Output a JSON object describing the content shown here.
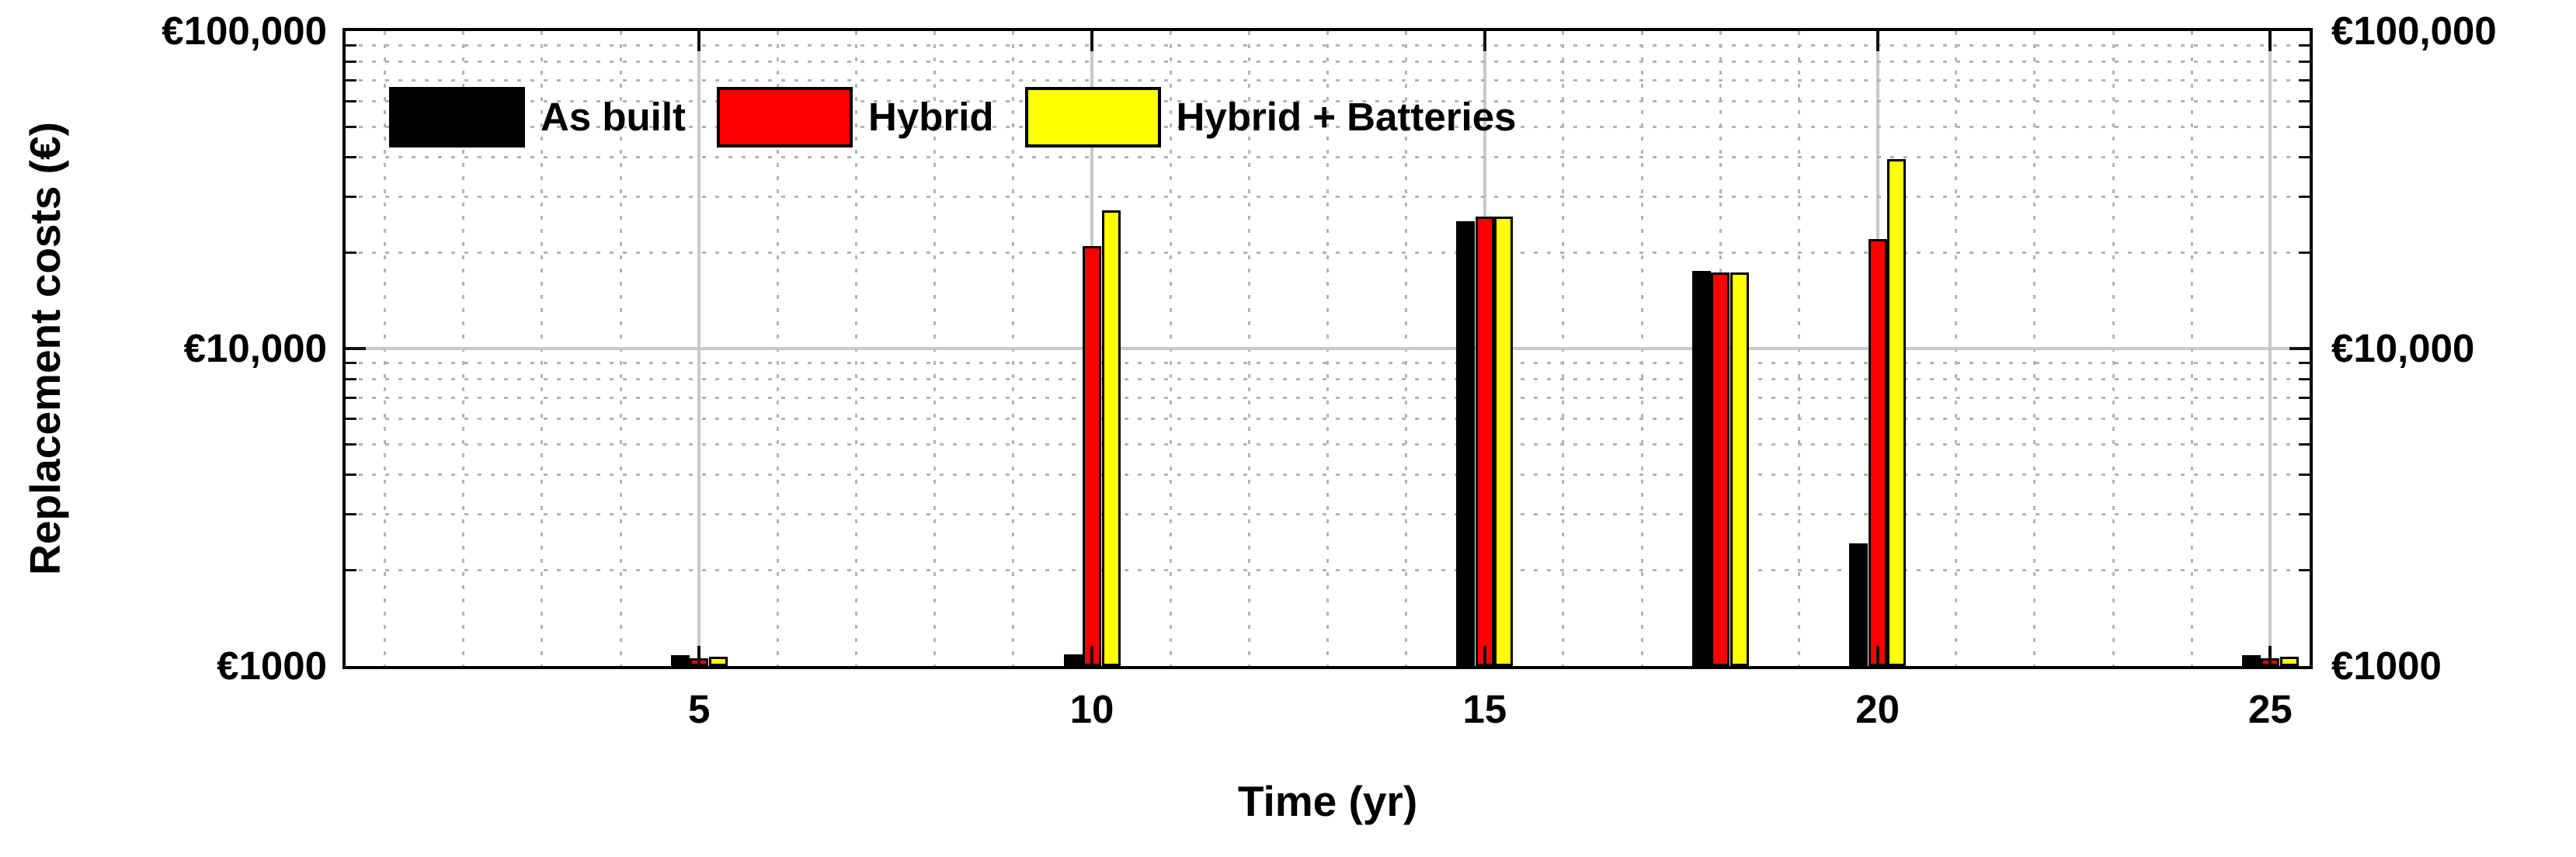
{
  "chart_data": {
    "type": "bar",
    "title": "",
    "xlabel": "Time (yr)",
    "ylabel": "Replacement costs (€)",
    "y_scale": "log",
    "ylim": [
      1000,
      100000
    ],
    "xlim": [
      0.5,
      25.5
    ],
    "grid": "on (major solid, minor dotted)",
    "legend_position": "top-left inside, no box",
    "x_major_ticks": [
      5,
      10,
      15,
      20,
      25
    ],
    "x_tick_labels": [
      "5",
      "10",
      "15",
      "20",
      "25"
    ],
    "x_minor_tick_step": 1,
    "y_ticks": [
      {
        "value": 1000,
        "label": "€1000"
      },
      {
        "value": 10000,
        "label": "€10,000"
      },
      {
        "value": 100000,
        "label": "€100,000"
      }
    ],
    "y_tick_labels_right": [
      "€1000",
      "€10,000",
      "€100,000"
    ],
    "categories": [
      5,
      10,
      15,
      18,
      20,
      25
    ],
    "series": [
      {
        "name": "As built",
        "color": "#000000",
        "values": [
          1080,
          1090,
          25200,
          17600,
          2430,
          1080
        ]
      },
      {
        "name": "Hybrid",
        "color": "#ff0000",
        "values": [
          1060,
          21000,
          26000,
          17400,
          22100,
          1060
        ]
      },
      {
        "name": "Hybrid + Batteries",
        "color": "#ffff00",
        "values": [
          1070,
          27200,
          26000,
          17400,
          39400,
          1070
        ]
      }
    ]
  }
}
